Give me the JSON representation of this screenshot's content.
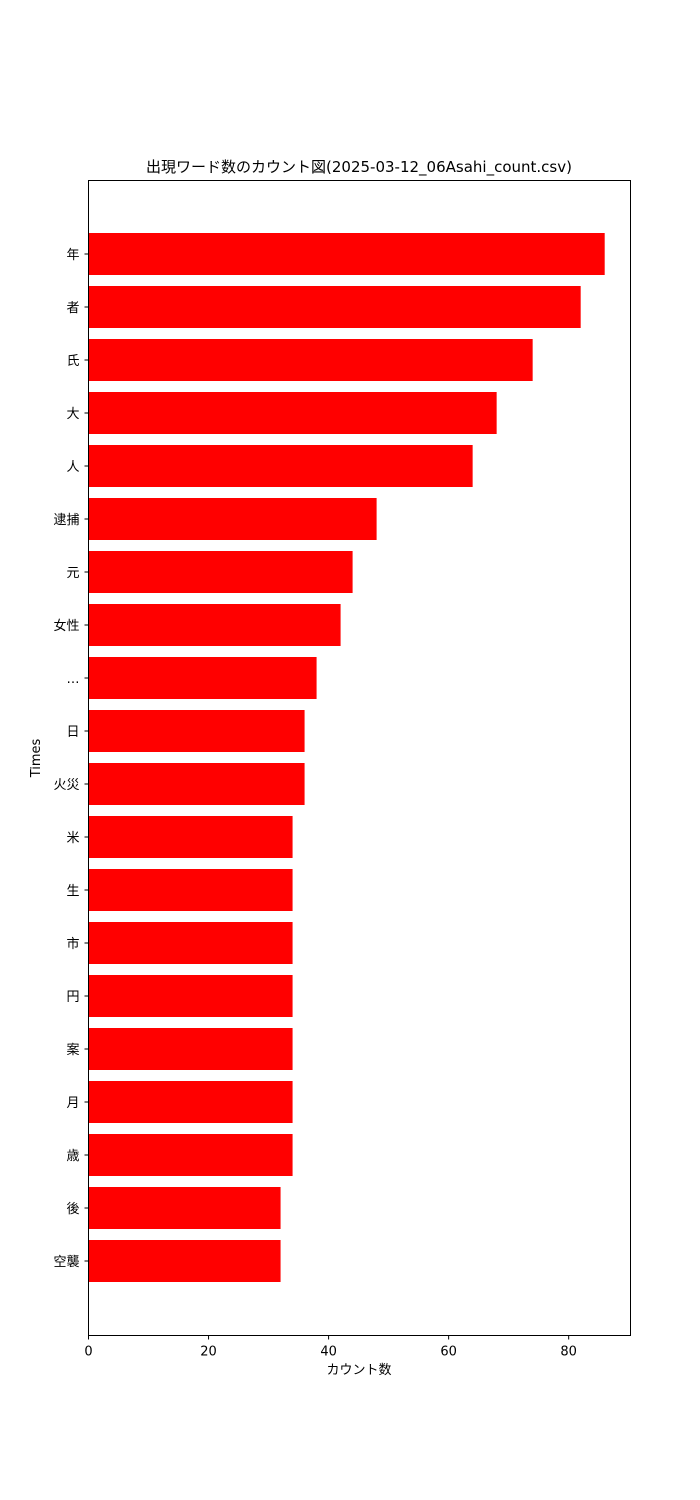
{
  "chart_data": {
    "type": "bar",
    "orientation": "horizontal",
    "title": "出現ワード数のカウント図(2025-03-12_06Asahi_count.csv)",
    "xlabel": "カウント数",
    "ylabel": "Times",
    "xlim": [
      0,
      90.3
    ],
    "xticks": [
      0,
      20,
      40,
      60,
      80
    ],
    "grid": false,
    "bar_color": "#ff0000",
    "categories": [
      "年",
      "者",
      "氏",
      "大",
      "人",
      "逮捕",
      "元",
      "女性",
      "…",
      "日",
      "火災",
      "米",
      "生",
      "市",
      "円",
      "案",
      "月",
      "歳",
      "後",
      "空襲"
    ],
    "values": [
      86,
      82,
      74,
      68,
      64,
      48,
      44,
      42,
      38,
      36,
      36,
      34,
      34,
      34,
      34,
      34,
      34,
      34,
      32,
      32
    ]
  }
}
